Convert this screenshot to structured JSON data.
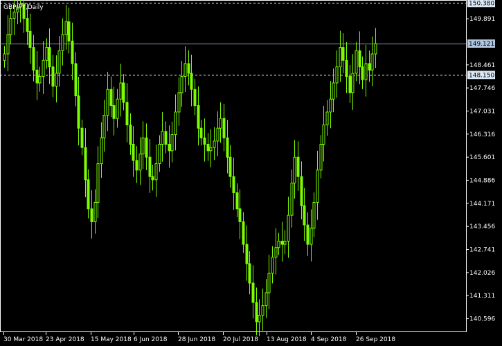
{
  "window": {
    "symbol_label": "GBPJPY,Daily"
  },
  "colors": {
    "background": "#000000",
    "frame": "#ffffff",
    "candle": "#7cfc00",
    "grid_dashed": "#ffffff",
    "price_line": "#8aa0b8",
    "tag_bg_bid": "#b0c4de",
    "tag_bg_level": "#dce9f5"
  },
  "price_tags": {
    "top_level": "150.380",
    "current_price": "149.121",
    "low_level": "148.150"
  },
  "chart_data": {
    "type": "candlestick",
    "title": "GBPJPY,Daily",
    "ylim": [
      140.2,
      150.45
    ],
    "y_ticks": [
      "149.891",
      "148.461",
      "147.746",
      "147.031",
      "146.316",
      "145.601",
      "144.886",
      "144.171",
      "143.456",
      "142.741",
      "142.026",
      "141.311",
      "140.596"
    ],
    "x_ticks": [
      "30 Mar 2018",
      "23 Apr 2018",
      "15 May 2018",
      "6 Jun 2018",
      "28 Jun 2018",
      "20 Jul 2018",
      "13 Aug 2018",
      "4 Sep 2018",
      "26 Sep 2018"
    ],
    "horizontal_levels": [
      150.38,
      149.121,
      148.15
    ],
    "closes": [
      148.8,
      149.4,
      149.9,
      150.1,
      150.25,
      150.35,
      149.9,
      149.5,
      149.0,
      148.3,
      147.9,
      148.1,
      148.6,
      149.0,
      148.4,
      147.8,
      148.2,
      148.9,
      149.4,
      149.8,
      149.2,
      148.5,
      147.5,
      146.5,
      145.9,
      144.9,
      144.0,
      143.6,
      144.2,
      145.4,
      146.2,
      146.9,
      147.7,
      147.2,
      146.8,
      147.4,
      147.9,
      147.3,
      146.6,
      146.0,
      145.5,
      145.2,
      145.7,
      146.2,
      145.6,
      145.0,
      144.9,
      145.4,
      146.0,
      146.4,
      146.0,
      145.8,
      146.3,
      147.0,
      147.6,
      148.1,
      148.5,
      148.2,
      147.7,
      147.2,
      146.5,
      146.2,
      146.0,
      145.8,
      145.9,
      146.1,
      146.5,
      146.8,
      146.2,
      145.6,
      145.0,
      144.5,
      144.0,
      143.6,
      142.9,
      142.3,
      141.7,
      141.1,
      140.5,
      140.7,
      141.0,
      141.4,
      142.0,
      142.5,
      142.8,
      143.0,
      142.9,
      143.0,
      143.8,
      144.8,
      145.6,
      145.0,
      144.1,
      143.5,
      142.9,
      143.4,
      144.2,
      145.2,
      146.0,
      146.6,
      147.0,
      147.4,
      147.9,
      148.4,
      149.0,
      148.6,
      148.1,
      147.6,
      148.2,
      148.9,
      148.4,
      148.0,
      148.5,
      148.3,
      148.8,
      149.121
    ]
  }
}
